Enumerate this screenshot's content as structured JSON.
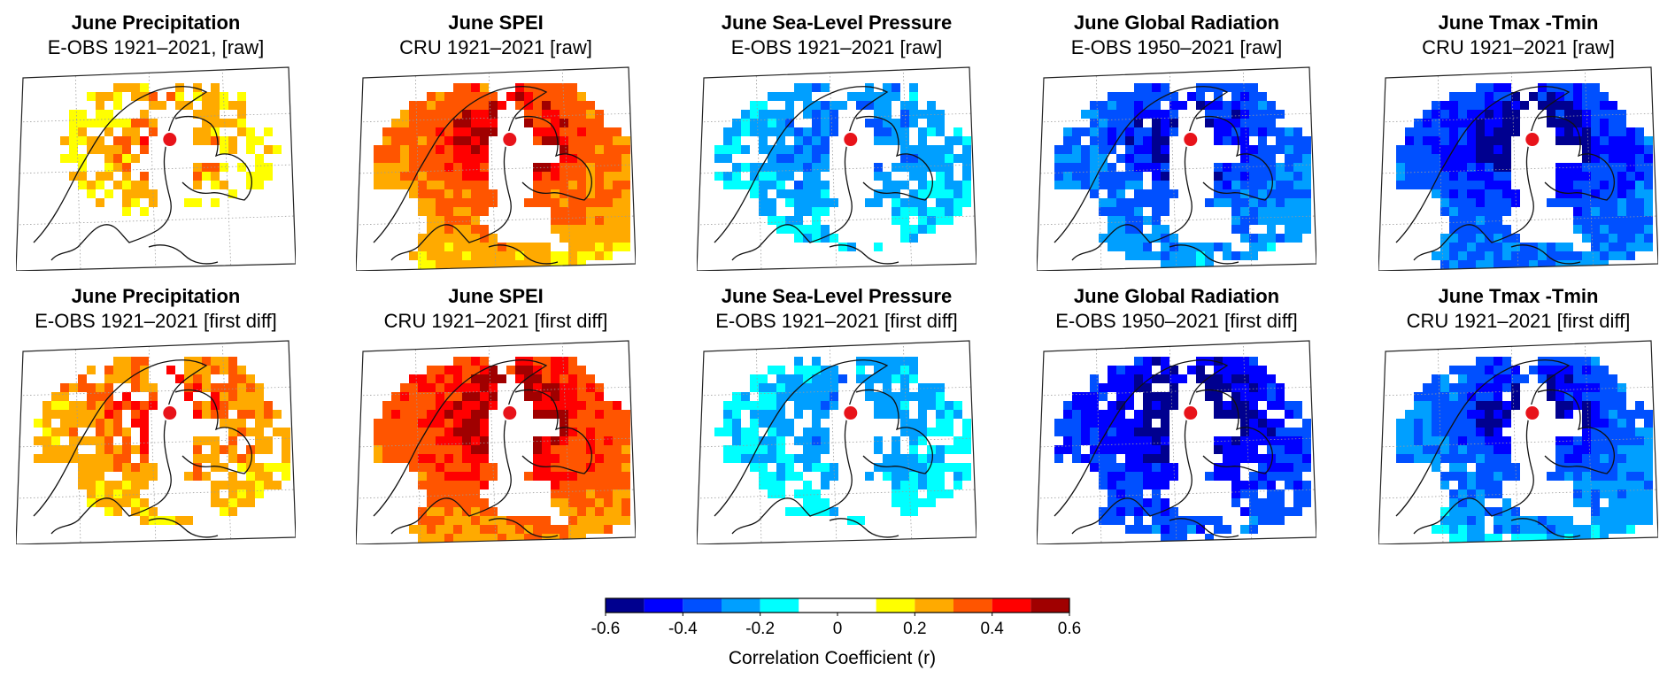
{
  "chart_data": {
    "type": "heatmap",
    "description_kind": "grid of correlation maps",
    "rows": [
      "raw",
      "first diff"
    ],
    "panels": [
      {
        "title": "June Precipitation",
        "subtitle": "E-OBS 1921–2021, [raw]",
        "sign": 1,
        "strength": 0.3,
        "coverage": 0.45,
        "dark_core": 0.35
      },
      {
        "title": "June SPEI",
        "subtitle": "CRU 1921–2021 [raw]",
        "sign": 1,
        "strength": 0.45,
        "coverage": 1.0,
        "dark_core": 0.5
      },
      {
        "title": "June Sea-Level Pressure",
        "subtitle": "E-OBS 1921–2021 [raw]",
        "sign": -1,
        "strength": 0.35,
        "coverage": 0.7,
        "dark_core": 0.0
      },
      {
        "title": "June Global Radiation",
        "subtitle": "E-OBS 1950–2021 [raw]",
        "sign": -1,
        "strength": 0.45,
        "coverage": 0.85,
        "dark_core": 0.45
      },
      {
        "title": "June Tmax -Tmin",
        "subtitle": "CRU 1921–2021 [raw]",
        "sign": -1,
        "strength": 0.5,
        "coverage": 1.0,
        "dark_core": 0.55
      },
      {
        "title": "June Precipitation",
        "subtitle": "E-OBS 1921–2021 [first diff]",
        "sign": 1,
        "strength": 0.38,
        "coverage": 0.7,
        "dark_core": 0.35
      },
      {
        "title": "June SPEI",
        "subtitle": "CRU 1921–2021 [first diff]",
        "sign": 1,
        "strength": 0.5,
        "coverage": 1.0,
        "dark_core": 0.6
      },
      {
        "title": "June Sea-Level Pressure",
        "subtitle": "E-OBS 1921–2021 [first diff]",
        "sign": -1,
        "strength": 0.32,
        "coverage": 0.7,
        "dark_core": 0.0
      },
      {
        "title": "June Global Radiation",
        "subtitle": "E-OBS 1950–2021 [first diff]",
        "sign": -1,
        "strength": 0.55,
        "coverage": 0.85,
        "dark_core": 0.7
      },
      {
        "title": "June Tmax -Tmin",
        "subtitle": "CRU 1921–2021 [first diff]",
        "sign": -1,
        "strength": 0.45,
        "coverage": 0.95,
        "dark_core": 0.45
      }
    ],
    "site_marker": {
      "label": "site",
      "color": "#e8131a"
    },
    "colorbar": {
      "title": "Correlation  Coefficient (r)",
      "range": [
        -0.6,
        0.6
      ],
      "ticks": [
        "-0.6",
        "-0.4",
        "-0.2",
        "0",
        "0.2",
        "0.4",
        "0.6"
      ],
      "tick_values": [
        -0.6,
        -0.4,
        -0.2,
        0,
        0.2,
        0.4,
        0.6
      ],
      "bins": [
        {
          "from": -0.6,
          "to": -0.5,
          "color": "#00008f"
        },
        {
          "from": -0.5,
          "to": -0.4,
          "color": "#0000ff"
        },
        {
          "from": -0.4,
          "to": -0.3,
          "color": "#0050ff"
        },
        {
          "from": -0.3,
          "to": -0.2,
          "color": "#009fff"
        },
        {
          "from": -0.2,
          "to": -0.1,
          "color": "#00ffff"
        },
        {
          "from": -0.1,
          "to": 0.0,
          "color": "#ffffff"
        },
        {
          "from": 0.0,
          "to": 0.1,
          "color": "#ffffff"
        },
        {
          "from": 0.1,
          "to": 0.2,
          "color": "#ffff00"
        },
        {
          "from": 0.2,
          "to": 0.3,
          "color": "#ffaa00"
        },
        {
          "from": 0.3,
          "to": 0.4,
          "color": "#ff5500"
        },
        {
          "from": 0.4,
          "to": 0.5,
          "color": "#ff0000"
        },
        {
          "from": 0.5,
          "to": 0.6,
          "color": "#a00000"
        }
      ]
    }
  }
}
